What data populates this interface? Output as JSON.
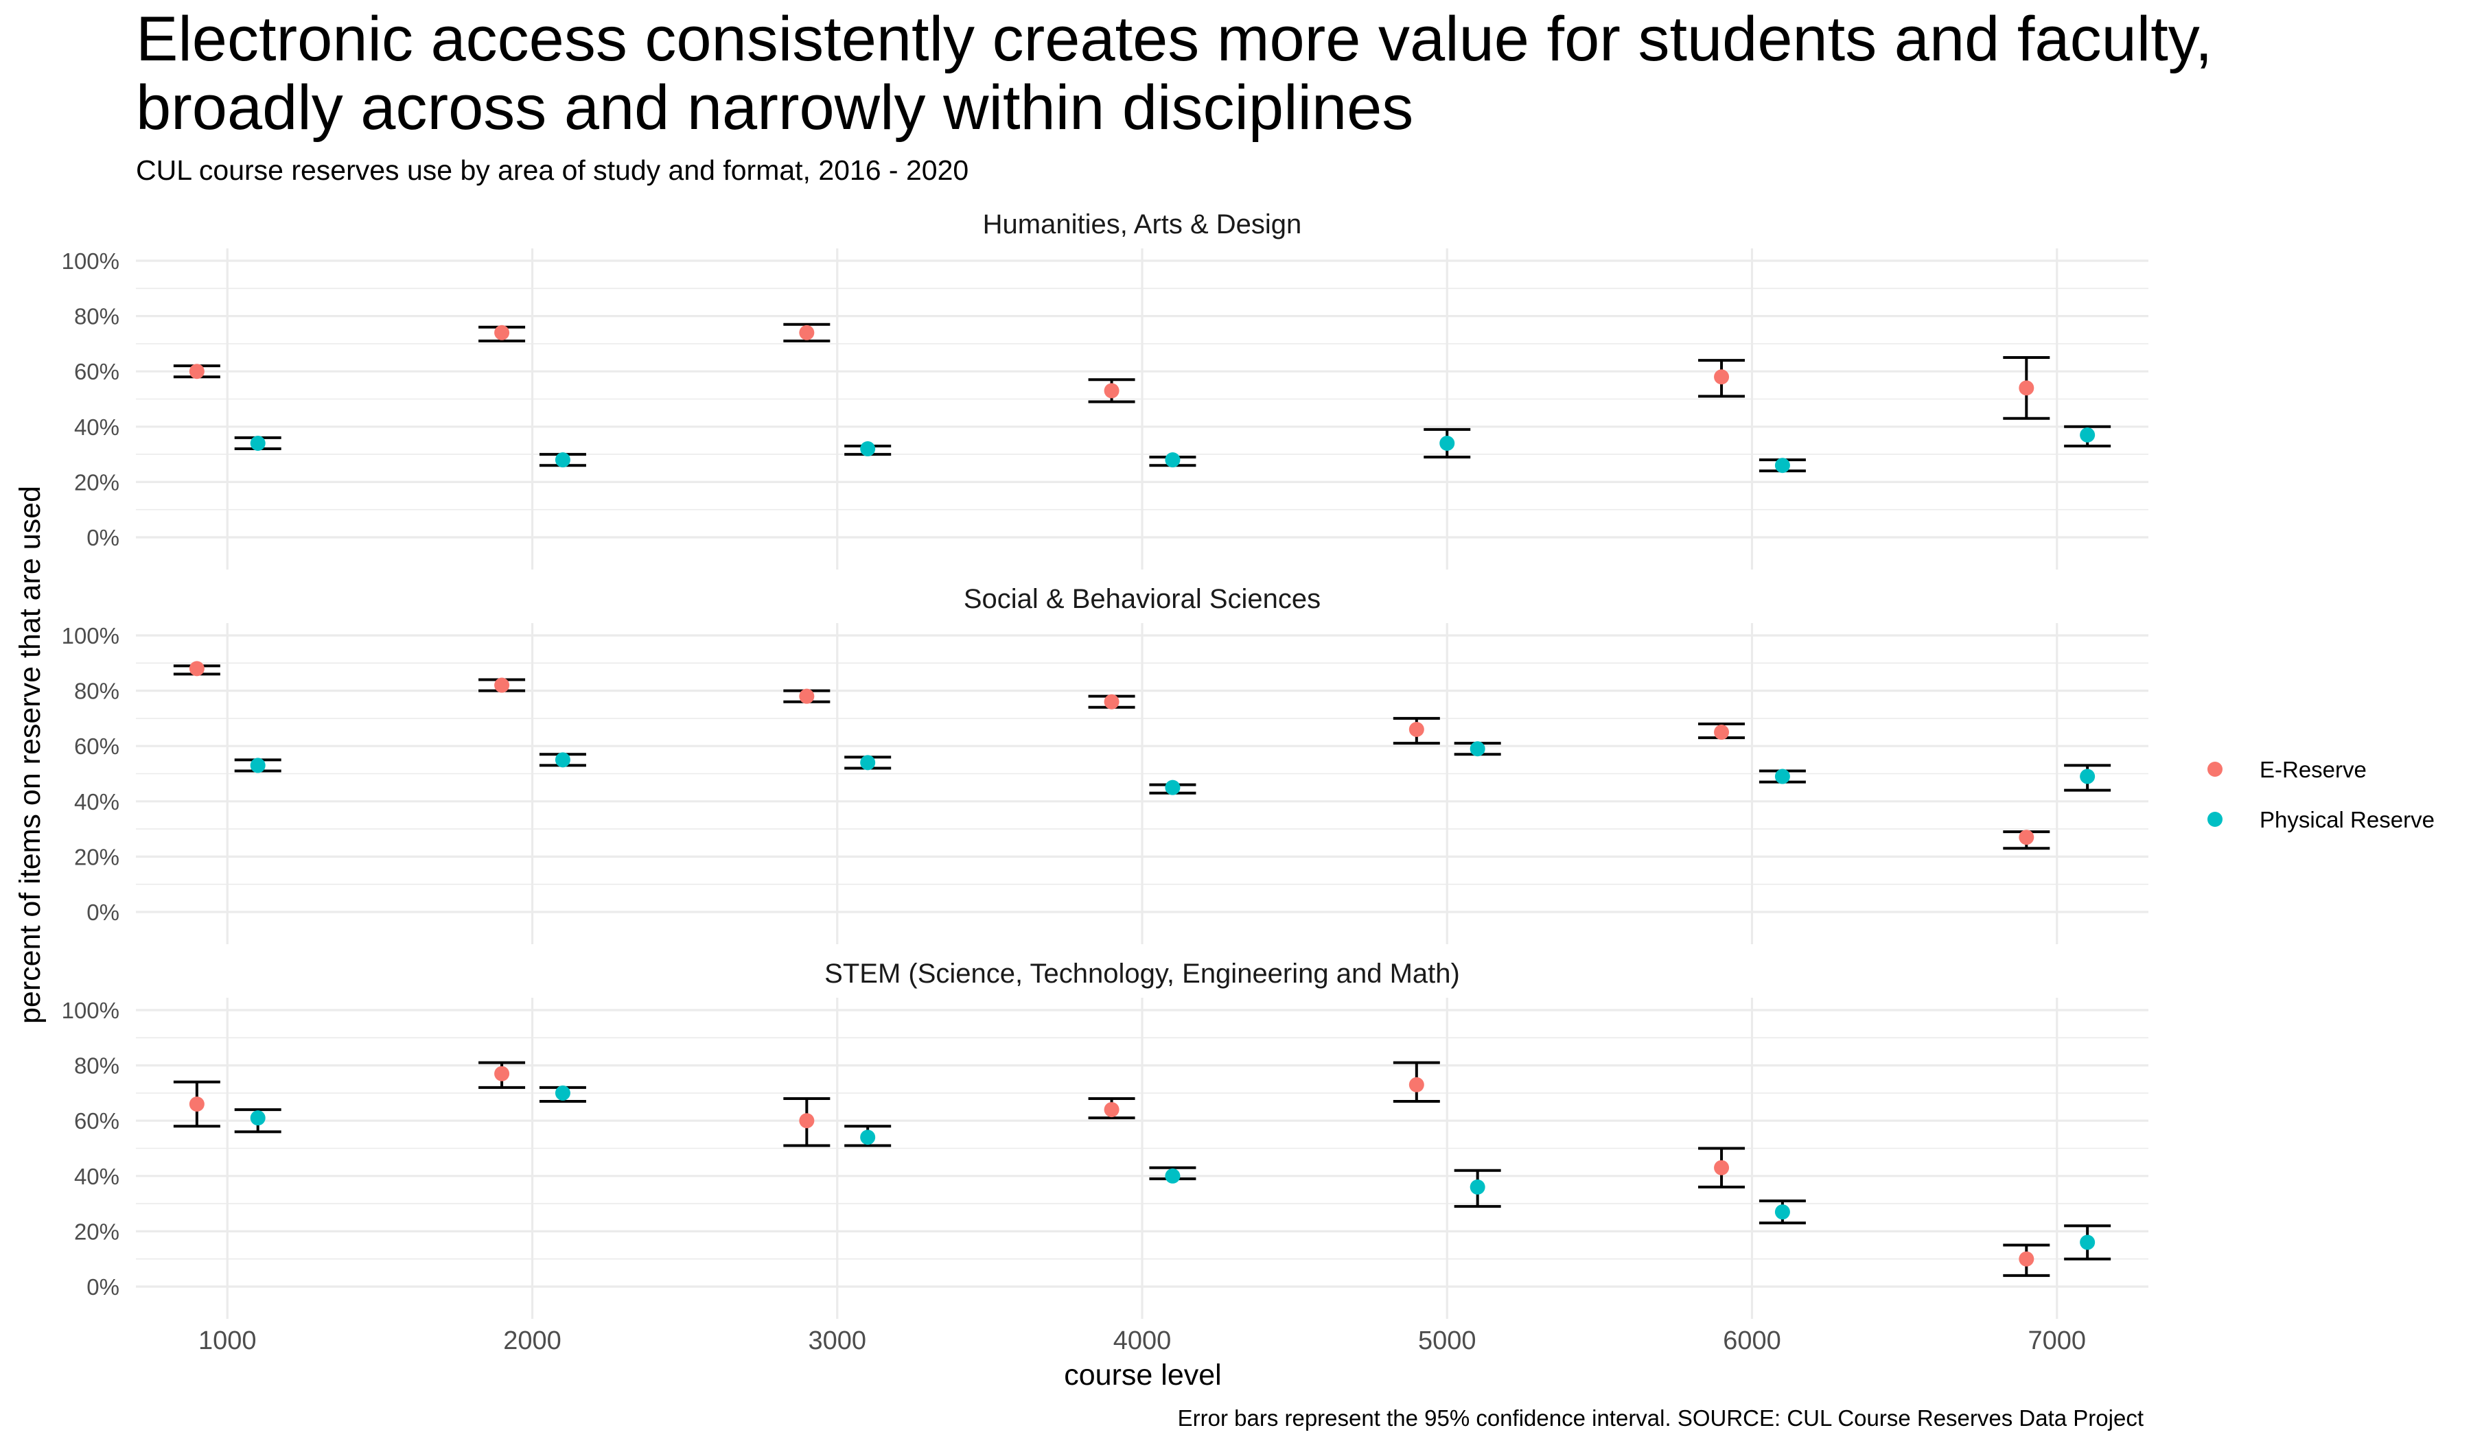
{
  "chart_data": {
    "type": "scatter",
    "title": "Electronic access consistently creates more value for students and faculty, broadly across and narrowly within disciplines",
    "title_lines": [
      "Electronic access consistently creates more value for students and faculty,",
      "broadly across and narrowly within disciplines"
    ],
    "subtitle": "CUL course reserves use by area of study and format, 2016 - 2020",
    "xlabel": "course level",
    "ylabel": "percent of items on reserve that are used",
    "caption": "Error bars represent the 95% confidence interval. SOURCE: CUL Course Reserves Data Project",
    "x_ticks": [
      "1000",
      "2000",
      "3000",
      "4000",
      "5000",
      "6000",
      "7000"
    ],
    "y_ticks": [
      "0%",
      "20%",
      "40%",
      "60%",
      "80%",
      "100%"
    ],
    "ylim": [
      0,
      1
    ],
    "xlim": [
      700,
      7300
    ],
    "grid": true,
    "legend": {
      "position": "right",
      "entries": [
        {
          "name": "E-Reserve",
          "color": "#F8766D"
        },
        {
          "name": "Physical Reserve",
          "color": "#00BFC4"
        }
      ]
    },
    "panels": [
      {
        "name": "Humanities, Arts & Design",
        "series": [
          {
            "name": "E-Reserve",
            "color": "#F8766D",
            "points": [
              {
                "x": 1000,
                "y": 0.6,
                "lo": 0.58,
                "hi": 0.62
              },
              {
                "x": 2000,
                "y": 0.74,
                "lo": 0.71,
                "hi": 0.76
              },
              {
                "x": 3000,
                "y": 0.74,
                "lo": 0.71,
                "hi": 0.77
              },
              {
                "x": 4000,
                "y": 0.53,
                "lo": 0.49,
                "hi": 0.57
              },
              {
                "x": 6000,
                "y": 0.58,
                "lo": 0.51,
                "hi": 0.64
              },
              {
                "x": 7000,
                "y": 0.54,
                "lo": 0.43,
                "hi": 0.65
              }
            ]
          },
          {
            "name": "Physical Reserve",
            "color": "#00BFC4",
            "points": [
              {
                "x": 1000,
                "y": 0.34,
                "lo": 0.32,
                "hi": 0.36
              },
              {
                "x": 2000,
                "y": 0.28,
                "lo": 0.26,
                "hi": 0.3
              },
              {
                "x": 3000,
                "y": 0.32,
                "lo": 0.3,
                "hi": 0.33
              },
              {
                "x": 4000,
                "y": 0.28,
                "lo": 0.26,
                "hi": 0.29
              },
              {
                "x": 5000,
                "y": 0.34,
                "lo": 0.29,
                "hi": 0.39
              },
              {
                "x": 6000,
                "y": 0.26,
                "lo": 0.24,
                "hi": 0.28
              },
              {
                "x": 7000,
                "y": 0.37,
                "lo": 0.33,
                "hi": 0.4
              }
            ]
          }
        ]
      },
      {
        "name": "Social & Behavioral Sciences",
        "series": [
          {
            "name": "E-Reserve",
            "color": "#F8766D",
            "points": [
              {
                "x": 1000,
                "y": 0.88,
                "lo": 0.86,
                "hi": 0.89
              },
              {
                "x": 2000,
                "y": 0.82,
                "lo": 0.8,
                "hi": 0.84
              },
              {
                "x": 3000,
                "y": 0.78,
                "lo": 0.76,
                "hi": 0.8
              },
              {
                "x": 4000,
                "y": 0.76,
                "lo": 0.74,
                "hi": 0.78
              },
              {
                "x": 5000,
                "y": 0.66,
                "lo": 0.61,
                "hi": 0.7
              },
              {
                "x": 6000,
                "y": 0.65,
                "lo": 0.63,
                "hi": 0.68
              },
              {
                "x": 7000,
                "y": 0.27,
                "lo": 0.23,
                "hi": 0.29
              }
            ]
          },
          {
            "name": "Physical Reserve",
            "color": "#00BFC4",
            "points": [
              {
                "x": 1000,
                "y": 0.53,
                "lo": 0.51,
                "hi": 0.55
              },
              {
                "x": 2000,
                "y": 0.55,
                "lo": 0.53,
                "hi": 0.57
              },
              {
                "x": 3000,
                "y": 0.54,
                "lo": 0.52,
                "hi": 0.56
              },
              {
                "x": 4000,
                "y": 0.45,
                "lo": 0.43,
                "hi": 0.46
              },
              {
                "x": 5000,
                "y": 0.59,
                "lo": 0.57,
                "hi": 0.61
              },
              {
                "x": 6000,
                "y": 0.49,
                "lo": 0.47,
                "hi": 0.51
              },
              {
                "x": 7000,
                "y": 0.49,
                "lo": 0.44,
                "hi": 0.53
              }
            ]
          }
        ]
      },
      {
        "name": "STEM (Science, Technology, Engineering and Math)",
        "series": [
          {
            "name": "E-Reserve",
            "color": "#F8766D",
            "points": [
              {
                "x": 1000,
                "y": 0.66,
                "lo": 0.58,
                "hi": 0.74
              },
              {
                "x": 2000,
                "y": 0.77,
                "lo": 0.72,
                "hi": 0.81
              },
              {
                "x": 3000,
                "y": 0.6,
                "lo": 0.51,
                "hi": 0.68
              },
              {
                "x": 4000,
                "y": 0.64,
                "lo": 0.61,
                "hi": 0.68
              },
              {
                "x": 5000,
                "y": 0.73,
                "lo": 0.67,
                "hi": 0.81
              },
              {
                "x": 6000,
                "y": 0.43,
                "lo": 0.36,
                "hi": 0.5
              },
              {
                "x": 7000,
                "y": 0.1,
                "lo": 0.04,
                "hi": 0.15
              }
            ]
          },
          {
            "name": "Physical Reserve",
            "color": "#00BFC4",
            "points": [
              {
                "x": 1000,
                "y": 0.61,
                "lo": 0.56,
                "hi": 0.64
              },
              {
                "x": 2000,
                "y": 0.7,
                "lo": 0.67,
                "hi": 0.72
              },
              {
                "x": 3000,
                "y": 0.54,
                "lo": 0.51,
                "hi": 0.58
              },
              {
                "x": 4000,
                "y": 0.4,
                "lo": 0.39,
                "hi": 0.43
              },
              {
                "x": 5000,
                "y": 0.36,
                "lo": 0.29,
                "hi": 0.42
              },
              {
                "x": 6000,
                "y": 0.27,
                "lo": 0.23,
                "hi": 0.31
              },
              {
                "x": 7000,
                "y": 0.16,
                "lo": 0.1,
                "hi": 0.22
              }
            ]
          }
        ]
      }
    ]
  }
}
